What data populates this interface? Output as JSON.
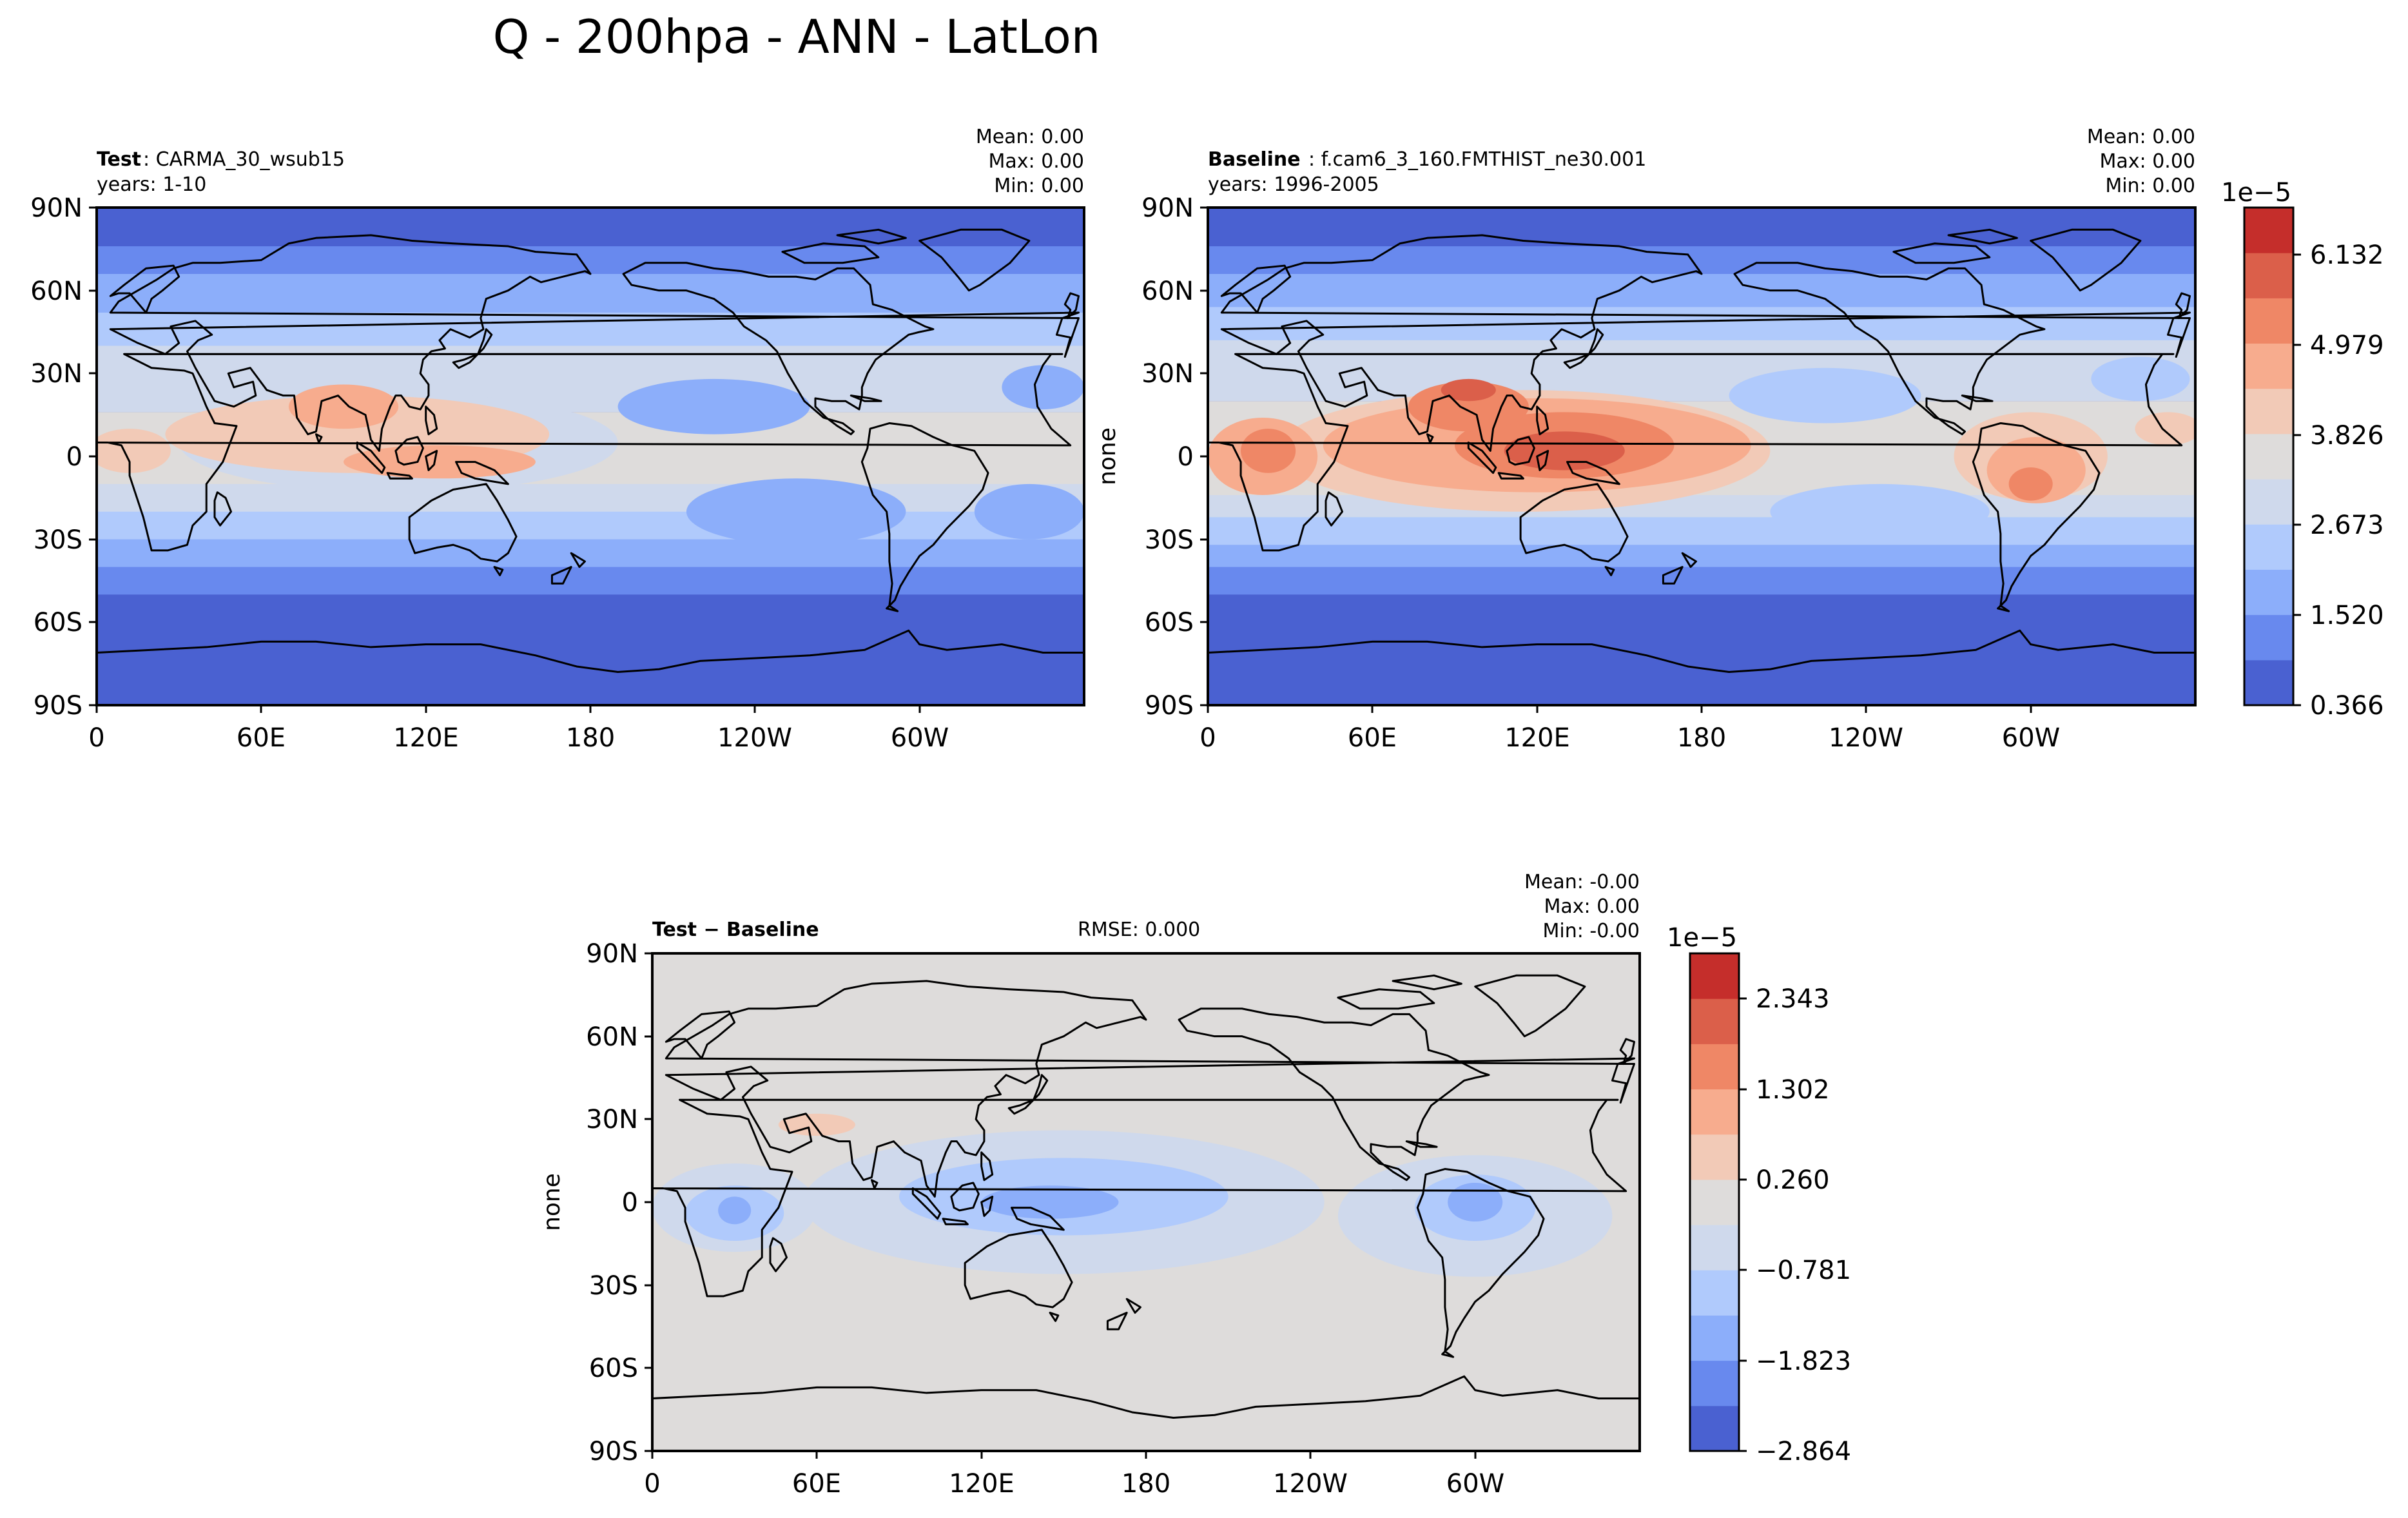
{
  "figure": {
    "title": "Q - 200hpa - ANN - LatLon"
  },
  "chart_data": [
    {
      "type": "heatmap",
      "panel": "test",
      "label_bold": "Test",
      "label_rest": ": CARMA_30_wsub15",
      "years": "years: 1-10",
      "stats": {
        "mean": "Mean:  0.00",
        "max": "Max:  0.00",
        "min": "Min:  0.00"
      },
      "ylabel": "",
      "x_ticks": [
        "0",
        "60E",
        "120E",
        "180",
        "120W",
        "60W"
      ],
      "y_ticks": [
        "90N",
        "60N",
        "30N",
        "0",
        "30S",
        "60S",
        "90S"
      ],
      "xlim": [
        0,
        360
      ],
      "ylim": [
        -90,
        90
      ],
      "colormap": "coolwarm",
      "levels_scale": "1e-5",
      "levels": [
        0.366,
        0.943,
        1.52,
        2.096,
        2.673,
        3.249,
        3.826,
        4.402,
        4.979,
        5.555,
        6.132,
        6.708
      ],
      "field_peak": "tropical West Pacific / Indian Ocean / South Asia ~3.8–4.4e-5"
    },
    {
      "type": "heatmap",
      "panel": "baseline",
      "label_bold": "Baseline",
      "label_rest": ": f.cam6_3_160.FMTHIST_ne30.001",
      "years": "years: 1996-2005",
      "stats": {
        "mean": "Mean:  0.00",
        "max": "Max:  0.00",
        "min": "Min:  0.00"
      },
      "ylabel": "none",
      "x_ticks": [
        "0",
        "60E",
        "120E",
        "180",
        "120W",
        "60W"
      ],
      "y_ticks": [
        "90N",
        "60N",
        "30N",
        "0",
        "30S",
        "60S",
        "90S"
      ],
      "xlim": [
        0,
        360
      ],
      "ylim": [
        -90,
        90
      ],
      "colormap": "coolwarm",
      "colorbar": {
        "offset": "1e−5",
        "ticks": [
          "6.132",
          "4.979",
          "3.826",
          "2.673",
          "1.520",
          "0.366"
        ]
      },
      "levels_scale": "1e-5",
      "levels": [
        0.366,
        0.943,
        1.52,
        2.096,
        2.673,
        3.249,
        3.826,
        4.402,
        4.979,
        5.555,
        6.132,
        6.708
      ],
      "field_peak": "Maritime Continent / West Pacific ~5.0–5.6e-5"
    },
    {
      "type": "heatmap",
      "panel": "diff",
      "label_bold": "Test − Baseline",
      "rmse": "RMSE: 0.000",
      "stats": {
        "mean": "Mean: -0.00",
        "max": "Max:  0.00",
        "min": "Min: -0.00"
      },
      "ylabel": "none",
      "x_ticks": [
        "0",
        "60E",
        "120E",
        "180",
        "120W",
        "60W"
      ],
      "y_ticks": [
        "90N",
        "60N",
        "30N",
        "0",
        "30S",
        "60S",
        "90S"
      ],
      "xlim": [
        0,
        360
      ],
      "ylim": [
        -90,
        90
      ],
      "colormap": "coolwarm",
      "colorbar": {
        "offset": "1e−5",
        "ticks": [
          "2.343",
          "1.302",
          "0.260",
          "−0.781",
          "−1.823",
          "−2.864"
        ]
      },
      "levels_scale": "1e-5",
      "levels": [
        -2.864,
        -2.343,
        -1.823,
        -1.302,
        -0.781,
        -0.26,
        0.26,
        0.781,
        1.302,
        1.823,
        2.343,
        2.864
      ]
    }
  ],
  "colors": {
    "coolwarm": [
      "#4a61d1",
      "#6889ee",
      "#8caefa",
      "#b0cafc",
      "#cfd9ec",
      "#dedcdb",
      "#f2cab7",
      "#f7ac8e",
      "#ef8766",
      "#db5f4a",
      "#c52e2b"
    ]
  }
}
